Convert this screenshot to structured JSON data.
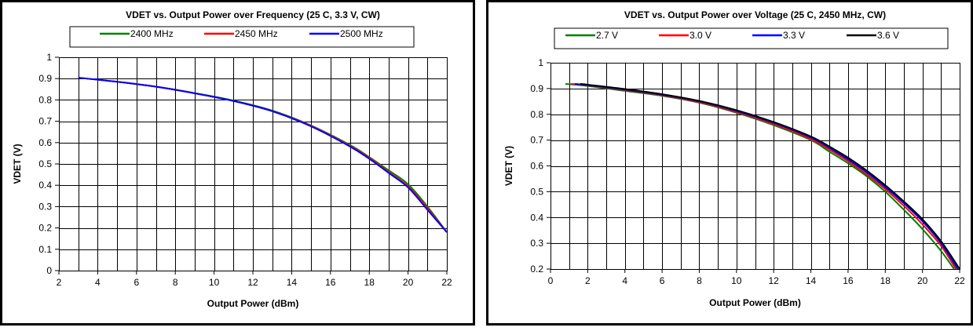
{
  "chart_data": [
    {
      "type": "line",
      "title": "VDET vs. Output Power over Frequency (25 C, 3.3 V, CW)",
      "xlabel": "Output Power (dBm)",
      "ylabel": "VDET (V)",
      "xlim": [
        2,
        22
      ],
      "ylim": [
        0,
        1
      ],
      "x_ticks": [
        "2",
        "4",
        "6",
        "8",
        "10",
        "12",
        "14",
        "16",
        "18",
        "20",
        "22"
      ],
      "y_ticks": [
        "0",
        "0.1",
        "0.2",
        "0.3",
        "0.4",
        "0.5",
        "0.6",
        "0.7",
        "0.8",
        "0.9",
        "1"
      ],
      "grid": true,
      "legend_position": "top",
      "series": [
        {
          "name": "2400 MHz",
          "color": "#008000",
          "points": [
            [
              3,
              0.904
            ],
            [
              5,
              0.885
            ],
            [
              7,
              0.862
            ],
            [
              9,
              0.832
            ],
            [
              11,
              0.797
            ],
            [
              13,
              0.75
            ],
            [
              15,
              0.68
            ],
            [
              17,
              0.589
            ],
            [
              18,
              0.532
            ],
            [
              19,
              0.47
            ],
            [
              20,
              0.405
            ],
            [
              21,
              0.3
            ],
            [
              22,
              0.18
            ]
          ]
        },
        {
          "name": "2450 MHz",
          "color": "#ff0000",
          "points": [
            [
              3,
              0.904
            ],
            [
              5,
              0.885
            ],
            [
              7,
              0.862
            ],
            [
              9,
              0.831
            ],
            [
              11,
              0.795
            ],
            [
              13,
              0.748
            ],
            [
              15,
              0.678
            ],
            [
              17,
              0.585
            ],
            [
              18,
              0.528
            ],
            [
              19,
              0.462
            ],
            [
              20,
              0.395
            ],
            [
              21,
              0.292
            ],
            [
              22,
              0.18
            ]
          ]
        },
        {
          "name": "2500 MHz",
          "color": "#0000ff",
          "points": [
            [
              3,
              0.904
            ],
            [
              5,
              0.885
            ],
            [
              7,
              0.862
            ],
            [
              9,
              0.831
            ],
            [
              11,
              0.795
            ],
            [
              13,
              0.747
            ],
            [
              15,
              0.676
            ],
            [
              17,
              0.582
            ],
            [
              18,
              0.524
            ],
            [
              19,
              0.458
            ],
            [
              20,
              0.39
            ],
            [
              21,
              0.285
            ],
            [
              22,
              0.18
            ]
          ]
        }
      ]
    },
    {
      "type": "line",
      "title": "VDET vs. Output Power over Voltage (25 C, 2450 MHz, CW)",
      "xlabel": "Output Power (dBm)",
      "ylabel": "VDET (V)",
      "xlim": [
        0,
        22
      ],
      "ylim": [
        0.2,
        1
      ],
      "x_ticks": [
        "0",
        "2",
        "4",
        "6",
        "8",
        "10",
        "12",
        "14",
        "16",
        "18",
        "20",
        "22"
      ],
      "y_ticks": [
        "0.2",
        "0.3",
        "0.4",
        "0.5",
        "0.6",
        "0.7",
        "0.8",
        "0.9",
        "1"
      ],
      "grid": true,
      "legend_position": "top",
      "series": [
        {
          "name": "2.7 V",
          "color": "#008000",
          "points": [
            [
              0.8,
              0.918
            ],
            [
              2,
              0.91
            ],
            [
              4,
              0.891
            ],
            [
              6,
              0.872
            ],
            [
              8,
              0.845
            ],
            [
              10,
              0.806
            ],
            [
              12,
              0.758
            ],
            [
              14,
              0.7
            ],
            [
              15,
              0.655
            ],
            [
              16,
              0.61
            ],
            [
              17,
              0.56
            ],
            [
              18,
              0.5
            ],
            [
              19,
              0.43
            ],
            [
              20,
              0.355
            ],
            [
              21,
              0.27
            ],
            [
              21.7,
              0.2
            ]
          ]
        },
        {
          "name": "3.0 V",
          "color": "#ff0000",
          "points": [
            [
              1.1,
              0.918
            ],
            [
              2,
              0.912
            ],
            [
              4,
              0.894
            ],
            [
              6,
              0.874
            ],
            [
              8,
              0.847
            ],
            [
              10,
              0.809
            ],
            [
              12,
              0.762
            ],
            [
              14,
              0.704
            ],
            [
              15,
              0.663
            ],
            [
              16,
              0.618
            ],
            [
              17,
              0.567
            ],
            [
              18,
              0.51
            ],
            [
              19,
              0.445
            ],
            [
              20,
              0.373
            ],
            [
              21,
              0.29
            ],
            [
              21.8,
              0.2
            ]
          ]
        },
        {
          "name": "3.3 V",
          "color": "#0000ff",
          "points": [
            [
              1.3,
              0.918
            ],
            [
              2,
              0.913
            ],
            [
              4,
              0.896
            ],
            [
              6,
              0.876
            ],
            [
              8,
              0.85
            ],
            [
              10,
              0.813
            ],
            [
              12,
              0.767
            ],
            [
              14,
              0.71
            ],
            [
              15,
              0.67
            ],
            [
              16,
              0.625
            ],
            [
              17,
              0.575
            ],
            [
              18,
              0.518
            ],
            [
              19,
              0.455
            ],
            [
              20,
              0.385
            ],
            [
              21,
              0.3
            ],
            [
              21.9,
              0.2
            ]
          ]
        },
        {
          "name": "3.6 V",
          "color": "#000000",
          "points": [
            [
              1.6,
              0.918
            ],
            [
              2,
              0.915
            ],
            [
              4,
              0.898
            ],
            [
              6,
              0.878
            ],
            [
              8,
              0.852
            ],
            [
              10,
              0.816
            ],
            [
              12,
              0.77
            ],
            [
              14,
              0.714
            ],
            [
              15,
              0.675
            ],
            [
              16,
              0.632
            ],
            [
              17,
              0.582
            ],
            [
              18,
              0.525
            ],
            [
              19,
              0.462
            ],
            [
              20,
              0.393
            ],
            [
              21,
              0.308
            ],
            [
              22,
              0.2
            ]
          ]
        }
      ]
    }
  ]
}
